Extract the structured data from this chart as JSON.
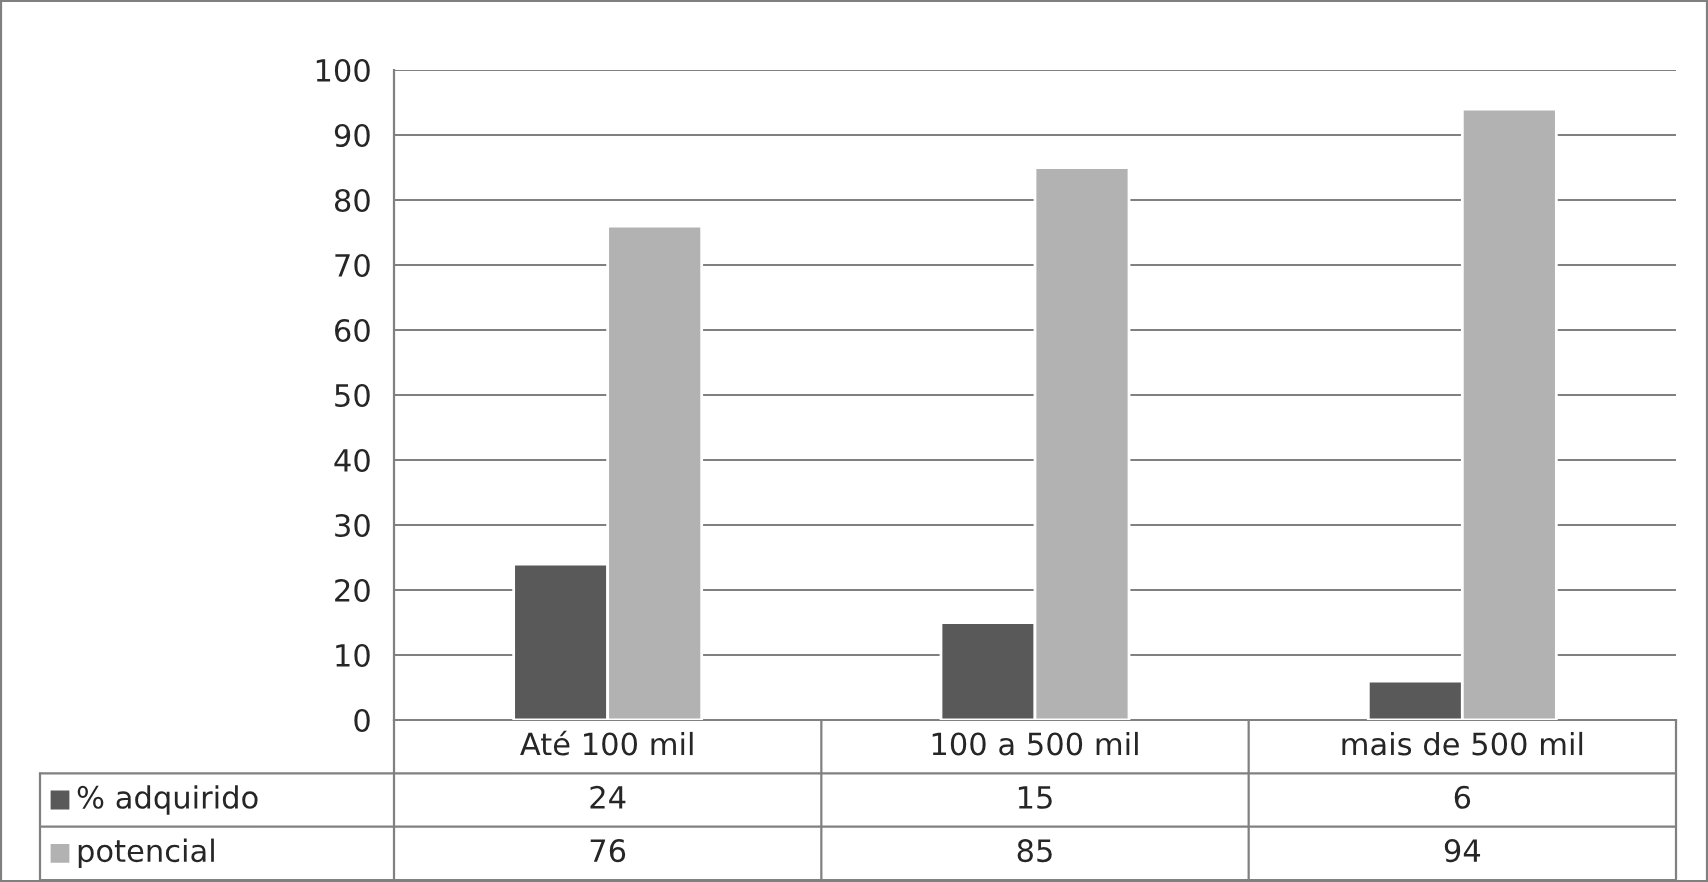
{
  "chart_data": {
    "type": "bar",
    "categories": [
      "Até 100 mil",
      "100 a 500 mil",
      "mais de 500 mil"
    ],
    "series": [
      {
        "name": "% adquirido",
        "color": "#595959",
        "values": [
          24,
          15,
          6
        ]
      },
      {
        "name": "potencial",
        "color": "#b2b2b2",
        "values": [
          76,
          85,
          94
        ]
      }
    ],
    "ylim": [
      0,
      100
    ],
    "yticks": [
      0,
      10,
      20,
      30,
      40,
      50,
      60,
      70,
      80,
      90,
      100
    ],
    "grid": "y",
    "data_labels": true,
    "legend": "bottom left"
  }
}
